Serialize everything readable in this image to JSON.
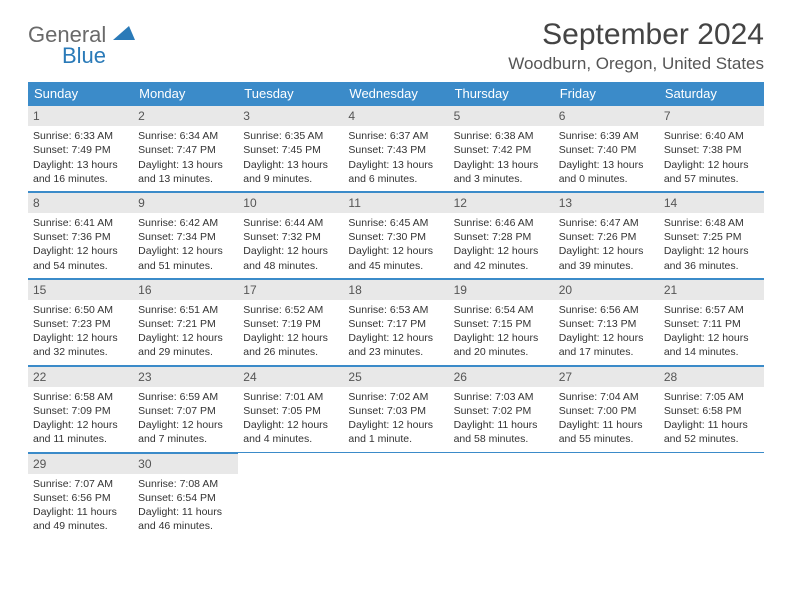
{
  "brand": {
    "word1": "General",
    "word2": "Blue"
  },
  "title": "September 2024",
  "location": "Woodburn, Oregon, United States",
  "colors": {
    "header_bg": "#3b8bc9",
    "header_text": "#ffffff",
    "daynum_bg": "#e8e8e8",
    "rule": "#3b8bc9",
    "body_text": "#333333",
    "title_text": "#444444",
    "logo_gray": "#6a6a6a",
    "logo_blue": "#2a7ab8"
  },
  "day_headers": [
    "Sunday",
    "Monday",
    "Tuesday",
    "Wednesday",
    "Thursday",
    "Friday",
    "Saturday"
  ],
  "weeks": [
    [
      {
        "n": "1",
        "sunrise": "6:33 AM",
        "sunset": "7:49 PM",
        "dl": "13 hours and 16 minutes."
      },
      {
        "n": "2",
        "sunrise": "6:34 AM",
        "sunset": "7:47 PM",
        "dl": "13 hours and 13 minutes."
      },
      {
        "n": "3",
        "sunrise": "6:35 AM",
        "sunset": "7:45 PM",
        "dl": "13 hours and 9 minutes."
      },
      {
        "n": "4",
        "sunrise": "6:37 AM",
        "sunset": "7:43 PM",
        "dl": "13 hours and 6 minutes."
      },
      {
        "n": "5",
        "sunrise": "6:38 AM",
        "sunset": "7:42 PM",
        "dl": "13 hours and 3 minutes."
      },
      {
        "n": "6",
        "sunrise": "6:39 AM",
        "sunset": "7:40 PM",
        "dl": "13 hours and 0 minutes."
      },
      {
        "n": "7",
        "sunrise": "6:40 AM",
        "sunset": "7:38 PM",
        "dl": "12 hours and 57 minutes."
      }
    ],
    [
      {
        "n": "8",
        "sunrise": "6:41 AM",
        "sunset": "7:36 PM",
        "dl": "12 hours and 54 minutes."
      },
      {
        "n": "9",
        "sunrise": "6:42 AM",
        "sunset": "7:34 PM",
        "dl": "12 hours and 51 minutes."
      },
      {
        "n": "10",
        "sunrise": "6:44 AM",
        "sunset": "7:32 PM",
        "dl": "12 hours and 48 minutes."
      },
      {
        "n": "11",
        "sunrise": "6:45 AM",
        "sunset": "7:30 PM",
        "dl": "12 hours and 45 minutes."
      },
      {
        "n": "12",
        "sunrise": "6:46 AM",
        "sunset": "7:28 PM",
        "dl": "12 hours and 42 minutes."
      },
      {
        "n": "13",
        "sunrise": "6:47 AM",
        "sunset": "7:26 PM",
        "dl": "12 hours and 39 minutes."
      },
      {
        "n": "14",
        "sunrise": "6:48 AM",
        "sunset": "7:25 PM",
        "dl": "12 hours and 36 minutes."
      }
    ],
    [
      {
        "n": "15",
        "sunrise": "6:50 AM",
        "sunset": "7:23 PM",
        "dl": "12 hours and 32 minutes."
      },
      {
        "n": "16",
        "sunrise": "6:51 AM",
        "sunset": "7:21 PM",
        "dl": "12 hours and 29 minutes."
      },
      {
        "n": "17",
        "sunrise": "6:52 AM",
        "sunset": "7:19 PM",
        "dl": "12 hours and 26 minutes."
      },
      {
        "n": "18",
        "sunrise": "6:53 AM",
        "sunset": "7:17 PM",
        "dl": "12 hours and 23 minutes."
      },
      {
        "n": "19",
        "sunrise": "6:54 AM",
        "sunset": "7:15 PM",
        "dl": "12 hours and 20 minutes."
      },
      {
        "n": "20",
        "sunrise": "6:56 AM",
        "sunset": "7:13 PM",
        "dl": "12 hours and 17 minutes."
      },
      {
        "n": "21",
        "sunrise": "6:57 AM",
        "sunset": "7:11 PM",
        "dl": "12 hours and 14 minutes."
      }
    ],
    [
      {
        "n": "22",
        "sunrise": "6:58 AM",
        "sunset": "7:09 PM",
        "dl": "12 hours and 11 minutes."
      },
      {
        "n": "23",
        "sunrise": "6:59 AM",
        "sunset": "7:07 PM",
        "dl": "12 hours and 7 minutes."
      },
      {
        "n": "24",
        "sunrise": "7:01 AM",
        "sunset": "7:05 PM",
        "dl": "12 hours and 4 minutes."
      },
      {
        "n": "25",
        "sunrise": "7:02 AM",
        "sunset": "7:03 PM",
        "dl": "12 hours and 1 minute."
      },
      {
        "n": "26",
        "sunrise": "7:03 AM",
        "sunset": "7:02 PM",
        "dl": "11 hours and 58 minutes."
      },
      {
        "n": "27",
        "sunrise": "7:04 AM",
        "sunset": "7:00 PM",
        "dl": "11 hours and 55 minutes."
      },
      {
        "n": "28",
        "sunrise": "7:05 AM",
        "sunset": "6:58 PM",
        "dl": "11 hours and 52 minutes."
      }
    ],
    [
      {
        "n": "29",
        "sunrise": "7:07 AM",
        "sunset": "6:56 PM",
        "dl": "11 hours and 49 minutes."
      },
      {
        "n": "30",
        "sunrise": "7:08 AM",
        "sunset": "6:54 PM",
        "dl": "11 hours and 46 minutes."
      },
      null,
      null,
      null,
      null,
      null
    ]
  ],
  "labels": {
    "sunrise": "Sunrise: ",
    "sunset": "Sunset: ",
    "daylight": "Daylight: "
  }
}
